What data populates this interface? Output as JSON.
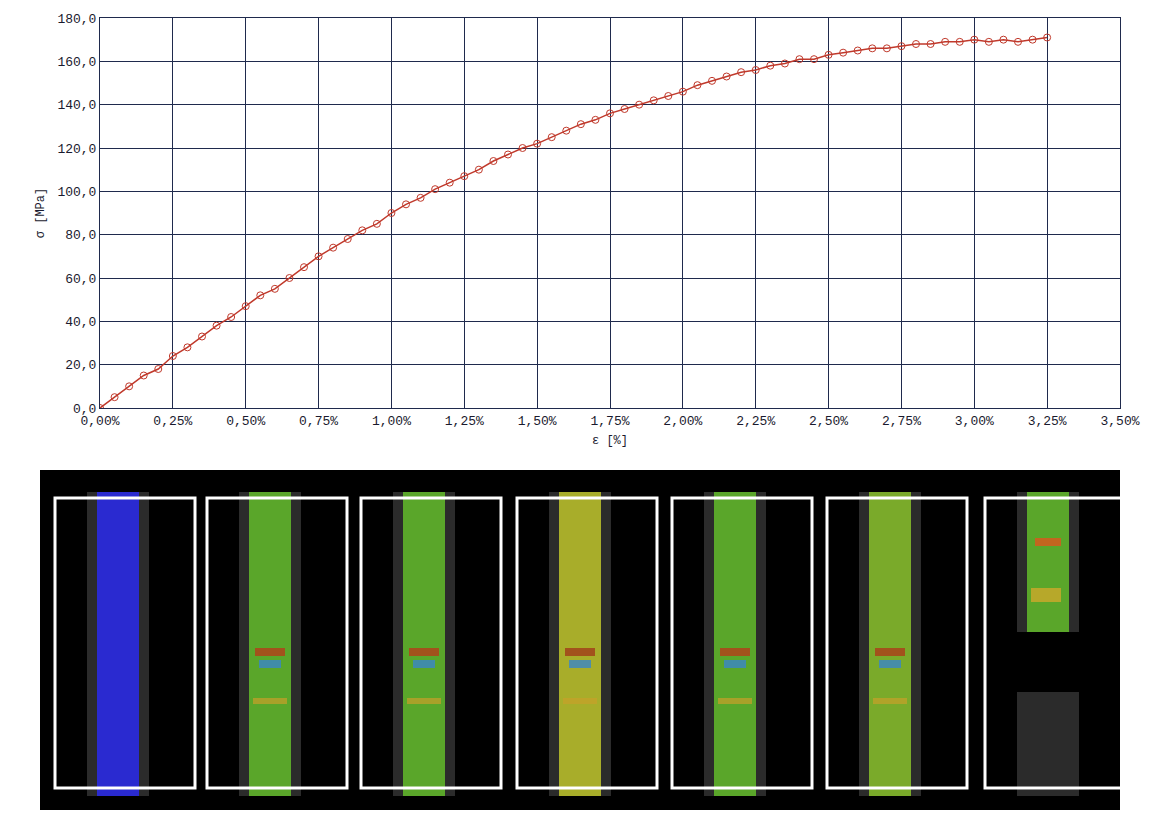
{
  "chart_data": {
    "type": "line",
    "x_label": "ε [%]",
    "y_label": "σ [MPa]",
    "color": "#c0392b",
    "marker": "circle-open",
    "grid": true,
    "x": [
      0,
      0.05,
      0.1,
      0.15,
      0.2,
      0.25,
      0.3,
      0.35,
      0.4,
      0.45,
      0.5,
      0.55,
      0.6,
      0.65,
      0.7,
      0.75,
      0.8,
      0.85,
      0.9,
      0.95,
      1.0,
      1.05,
      1.1,
      1.15,
      1.2,
      1.25,
      1.3,
      1.35,
      1.4,
      1.45,
      1.5,
      1.55,
      1.6,
      1.65,
      1.7,
      1.75,
      1.8,
      1.85,
      1.9,
      1.95,
      2.0,
      2.05,
      2.1,
      2.15,
      2.2,
      2.25,
      2.3,
      2.35,
      2.4,
      2.45,
      2.5,
      2.55,
      2.6,
      2.65,
      2.7,
      2.75,
      2.8,
      2.85,
      2.9,
      2.95,
      3.0,
      3.05,
      3.1,
      3.15,
      3.2,
      3.25
    ],
    "values": [
      0,
      5,
      10,
      15,
      18,
      24,
      28,
      33,
      38,
      42,
      47,
      52,
      55,
      60,
      65,
      70,
      74,
      78,
      82,
      85,
      90,
      94,
      97,
      101,
      104,
      107,
      110,
      114,
      117,
      120,
      122,
      125,
      128,
      131,
      133,
      136,
      138,
      140,
      142,
      144,
      146,
      149,
      151,
      153,
      155,
      156,
      158,
      159,
      161,
      161,
      163,
      164,
      165,
      166,
      166,
      167,
      168,
      168,
      169,
      169,
      170,
      169,
      170,
      169,
      170,
      171
    ],
    "xlim": [
      0,
      3.5
    ],
    "xticks": [
      {
        "value": 0,
        "label": "0,00%"
      },
      {
        "value": 0.25,
        "label": "0,25%"
      },
      {
        "value": 0.5,
        "label": "0,50%"
      },
      {
        "value": 0.75,
        "label": "0,75%"
      },
      {
        "value": 1.0,
        "label": "1,00%"
      },
      {
        "value": 1.25,
        "label": "1,25%"
      },
      {
        "value": 1.5,
        "label": "1,50%"
      },
      {
        "value": 1.75,
        "label": "1,75%"
      },
      {
        "value": 2.0,
        "label": "2,00%"
      },
      {
        "value": 2.25,
        "label": "2,25%"
      },
      {
        "value": 2.5,
        "label": "2,50%"
      },
      {
        "value": 2.75,
        "label": "2,75%"
      },
      {
        "value": 3.0,
        "label": "3,00%"
      },
      {
        "value": 3.25,
        "label": "3,25%"
      },
      {
        "value": 3.5,
        "label": "3,50%"
      }
    ],
    "ylim": [
      0,
      180
    ],
    "yticks": [
      {
        "value": 0,
        "label": "0,0"
      },
      {
        "value": 20,
        "label": "20,0"
      },
      {
        "value": 40,
        "label": "40,0"
      },
      {
        "value": 60,
        "label": "60,0"
      },
      {
        "value": 80,
        "label": "80,0"
      },
      {
        "value": 100,
        "label": "100,0"
      },
      {
        "value": 120,
        "label": "120,0"
      },
      {
        "value": 140,
        "label": "140,0"
      },
      {
        "value": 160,
        "label": "160,0"
      },
      {
        "value": 180,
        "label": "180,0"
      }
    ]
  }
}
